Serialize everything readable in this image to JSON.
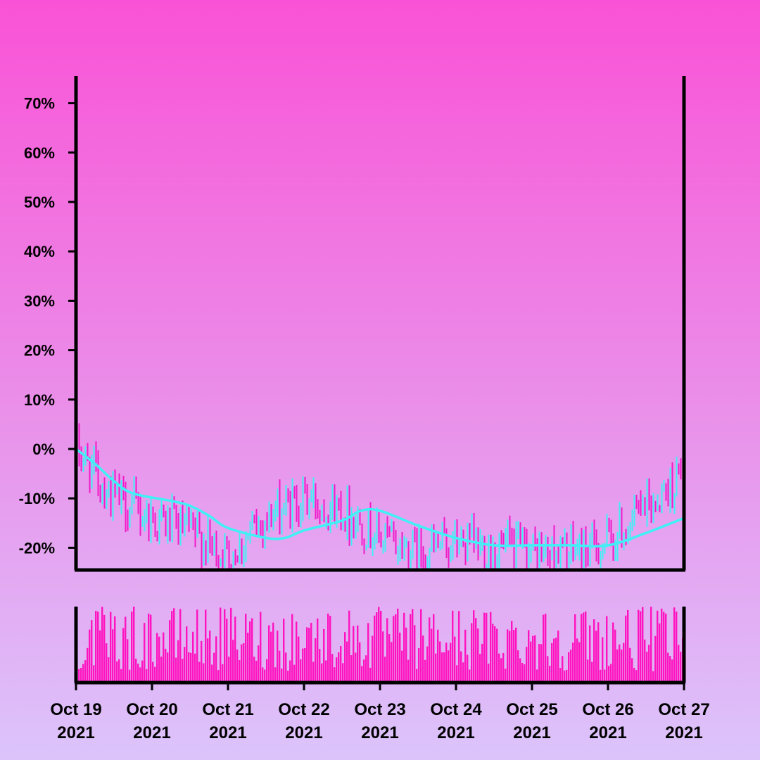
{
  "colors": {
    "background_top": "#fa52d6",
    "background_bottom": "#dcc4fb",
    "axis": "#000000",
    "up_candle": "#3ff0f5",
    "down_candle": "#f01cc8",
    "moving_average": "#3ff0f5",
    "volume": "#ff14c0"
  },
  "chart_data": [
    {
      "type": "candlestick",
      "title": "",
      "xlabel": "",
      "ylabel": "",
      "ylim": [
        -24.5,
        75.5
      ],
      "yticks": [
        -20,
        -10,
        0,
        10,
        20,
        30,
        40,
        50,
        60,
        70
      ],
      "ytick_labels": [
        "-20%",
        "-10%",
        "0%",
        "10%",
        "20%",
        "30%",
        "40%",
        "50%",
        "60%",
        "70%"
      ],
      "xlim": [
        "2021-10-19",
        "2021-10-27"
      ],
      "series": [
        {
          "kind": "candles",
          "description_count": 288,
          "close_path": [
            [
              "2021-10-19T00:00",
              0
            ],
            [
              "2021-10-19T12:00",
              -10
            ],
            [
              "2021-10-20T00:00",
              -14
            ],
            [
              "2021-10-20T12:00",
              -17
            ],
            [
              "2021-10-21T00:00",
              -22
            ],
            [
              "2021-10-21T12:00",
              -14
            ],
            [
              "2021-10-22T00:00",
              -10
            ],
            [
              "2021-10-22T12:00",
              -12
            ],
            [
              "2021-10-23T00:00",
              -18
            ],
            [
              "2021-10-23T12:00",
              -21
            ],
            [
              "2021-10-24T00:00",
              -19
            ],
            [
              "2021-10-24T12:00",
              -20
            ],
            [
              "2021-10-25T00:00",
              -21
            ],
            [
              "2021-10-25T12:00",
              -21
            ],
            [
              "2021-10-26T00:00",
              -19
            ],
            [
              "2021-10-26T12:00",
              -12
            ],
            [
              "2021-10-27T00:00",
              -5
            ]
          ]
        },
        {
          "kind": "moving_average",
          "points": [
            [
              "2021-10-19T00:00",
              0
            ],
            [
              "2021-10-19T06:00",
              -3
            ],
            [
              "2021-10-19T12:00",
              -6.5
            ],
            [
              "2021-10-19T18:00",
              -9
            ],
            [
              "2021-10-20T06:00",
              -10.5
            ],
            [
              "2021-10-20T12:00",
              -11.5
            ],
            [
              "2021-10-20T18:00",
              -13.5
            ],
            [
              "2021-10-21T00:00",
              -16
            ],
            [
              "2021-10-21T12:00",
              -18
            ],
            [
              "2021-10-21T18:00",
              -18
            ],
            [
              "2021-10-22T00:00",
              -16.5
            ],
            [
              "2021-10-22T12:00",
              -14.5
            ],
            [
              "2021-10-22T18:00",
              -12.5
            ],
            [
              "2021-10-23T00:00",
              -12.5
            ],
            [
              "2021-10-23T12:00",
              -15.5
            ],
            [
              "2021-10-24T00:00",
              -18
            ],
            [
              "2021-10-24T12:00",
              -19.5
            ],
            [
              "2021-10-25T00:00",
              -19.5
            ],
            [
              "2021-10-25T12:00",
              -19.5
            ],
            [
              "2021-10-26T00:00",
              -19.5
            ],
            [
              "2021-10-26T12:00",
              -17
            ],
            [
              "2021-10-27T00:00",
              -14
            ]
          ]
        }
      ]
    },
    {
      "type": "bar",
      "title": "",
      "series_name": "",
      "ylim": [
        0,
        1
      ],
      "bar_count": 288
    }
  ],
  "x_axis": {
    "ticks": [
      {
        "date": "2021-10-19",
        "line1": "Oct 19",
        "line2": "2021"
      },
      {
        "date": "2021-10-20",
        "line1": "Oct 20",
        "line2": "2021"
      },
      {
        "date": "2021-10-21",
        "line1": "Oct 21",
        "line2": "2021"
      },
      {
        "date": "2021-10-22",
        "line1": "Oct 22",
        "line2": "2021"
      },
      {
        "date": "2021-10-23",
        "line1": "Oct 23",
        "line2": "2021"
      },
      {
        "date": "2021-10-24",
        "line1": "Oct 24",
        "line2": "2021"
      },
      {
        "date": "2021-10-25",
        "line1": "Oct 25",
        "line2": "2021"
      },
      {
        "date": "2021-10-26",
        "line1": "Oct 26",
        "line2": "2021"
      },
      {
        "date": "2021-10-27",
        "line1": "Oct 27",
        "line2": "2021"
      }
    ]
  }
}
